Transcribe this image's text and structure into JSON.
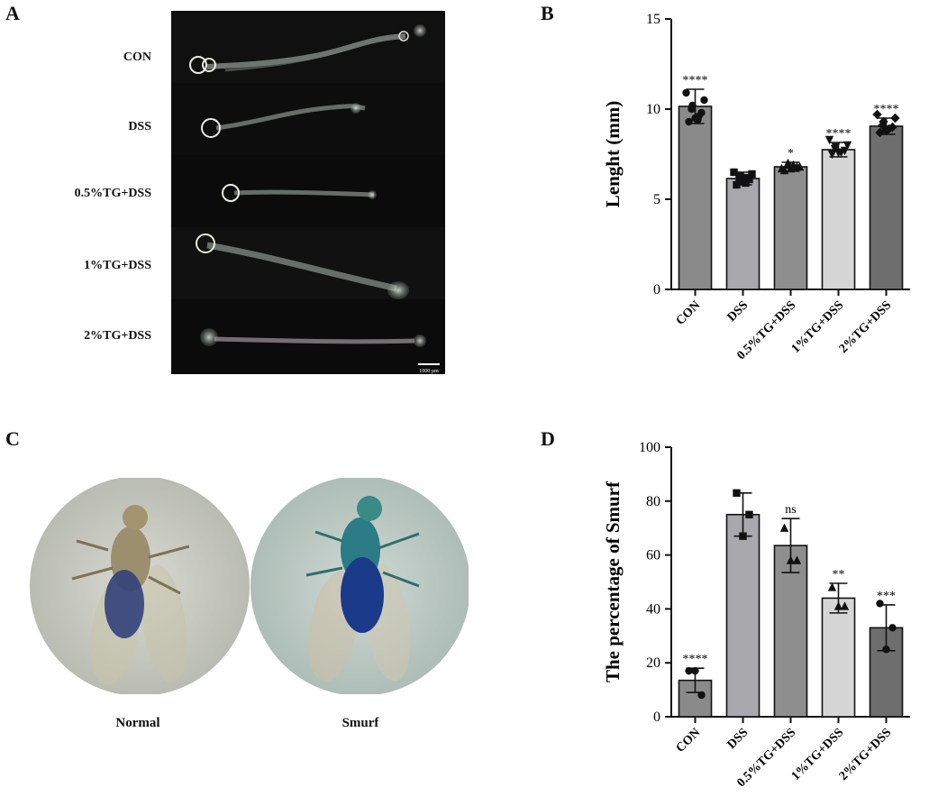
{
  "panels": {
    "a": "A",
    "b": "B",
    "c": "C",
    "d": "D"
  },
  "gut_groups": [
    "CON",
    "DSS",
    "0.5%TG+DSS",
    "1%TG+DSS",
    "2%TG+DSS"
  ],
  "scale_bar_label": "1000 µm",
  "fly_labels": {
    "normal": "Normal",
    "smurf": "Smurf"
  },
  "colors": {
    "bar_con": "#8a8a8a",
    "bar_dss": "#a9a9ad",
    "bar_05": "#8e8e8e",
    "bar_1": "#d6d6d6",
    "bar_2": "#6e6e6e",
    "micro_bg": "#0b0b0b"
  },
  "chart_data": [
    {
      "type": "bar",
      "panel": "B",
      "categories": [
        "CON",
        "DSS",
        "0.5%TG+DSS",
        "1%TG+DSS",
        "2%TG+DSS"
      ],
      "values": [
        10.15,
        6.15,
        6.8,
        7.75,
        9.05
      ],
      "errors": [
        0.95,
        0.35,
        0.25,
        0.4,
        0.45
      ],
      "significance": [
        "****",
        "",
        "*",
        "****",
        "****"
      ],
      "points": [
        [
          9.3,
          9.5,
          9.8,
          10.0,
          10.2,
          10.5,
          10.9,
          9.4,
          9.6
        ],
        [
          5.8,
          6.0,
          6.1,
          6.2,
          6.3,
          6.4,
          6.5,
          5.9,
          6.2
        ],
        [
          6.6,
          6.7,
          6.8,
          6.9,
          7.0,
          6.8,
          6.7,
          6.9
        ],
        [
          7.5,
          7.6,
          7.7,
          7.8,
          7.9,
          8.0,
          8.3,
          7.6
        ],
        [
          8.7,
          8.8,
          9.0,
          9.1,
          9.3,
          9.5,
          9.7,
          8.9
        ]
      ],
      "marker_shapes": [
        "circle",
        "square",
        "triangle-up",
        "triangle-down",
        "diamond"
      ],
      "ylabel": "Lenght (mm)",
      "xlabel": "",
      "ylim": [
        0,
        15
      ],
      "yticks": [
        0,
        5,
        10,
        15
      ]
    },
    {
      "type": "bar",
      "panel": "D",
      "categories": [
        "CON",
        "DSS",
        "0.5%TG+DSS",
        "1%TG+DSS",
        "2%TG+DSS"
      ],
      "values": [
        13.5,
        75,
        63.5,
        44,
        33
      ],
      "errors": [
        4.5,
        8,
        10,
        5.5,
        8.5
      ],
      "significance": [
        "****",
        "",
        "ns",
        "**",
        "***"
      ],
      "points": [
        [
          17,
          17,
          8
        ],
        [
          83,
          67,
          75
        ],
        [
          70,
          58,
          58
        ],
        [
          48,
          41,
          41
        ],
        [
          42,
          25,
          33
        ]
      ],
      "marker_shapes": [
        "circle",
        "square",
        "triangle-up",
        "triangle-up",
        "circle"
      ],
      "ylabel": "The percentage of  Smurf",
      "xlabel": "",
      "ylim": [
        0,
        100
      ],
      "yticks": [
        0,
        20,
        40,
        60,
        80,
        100
      ]
    }
  ]
}
